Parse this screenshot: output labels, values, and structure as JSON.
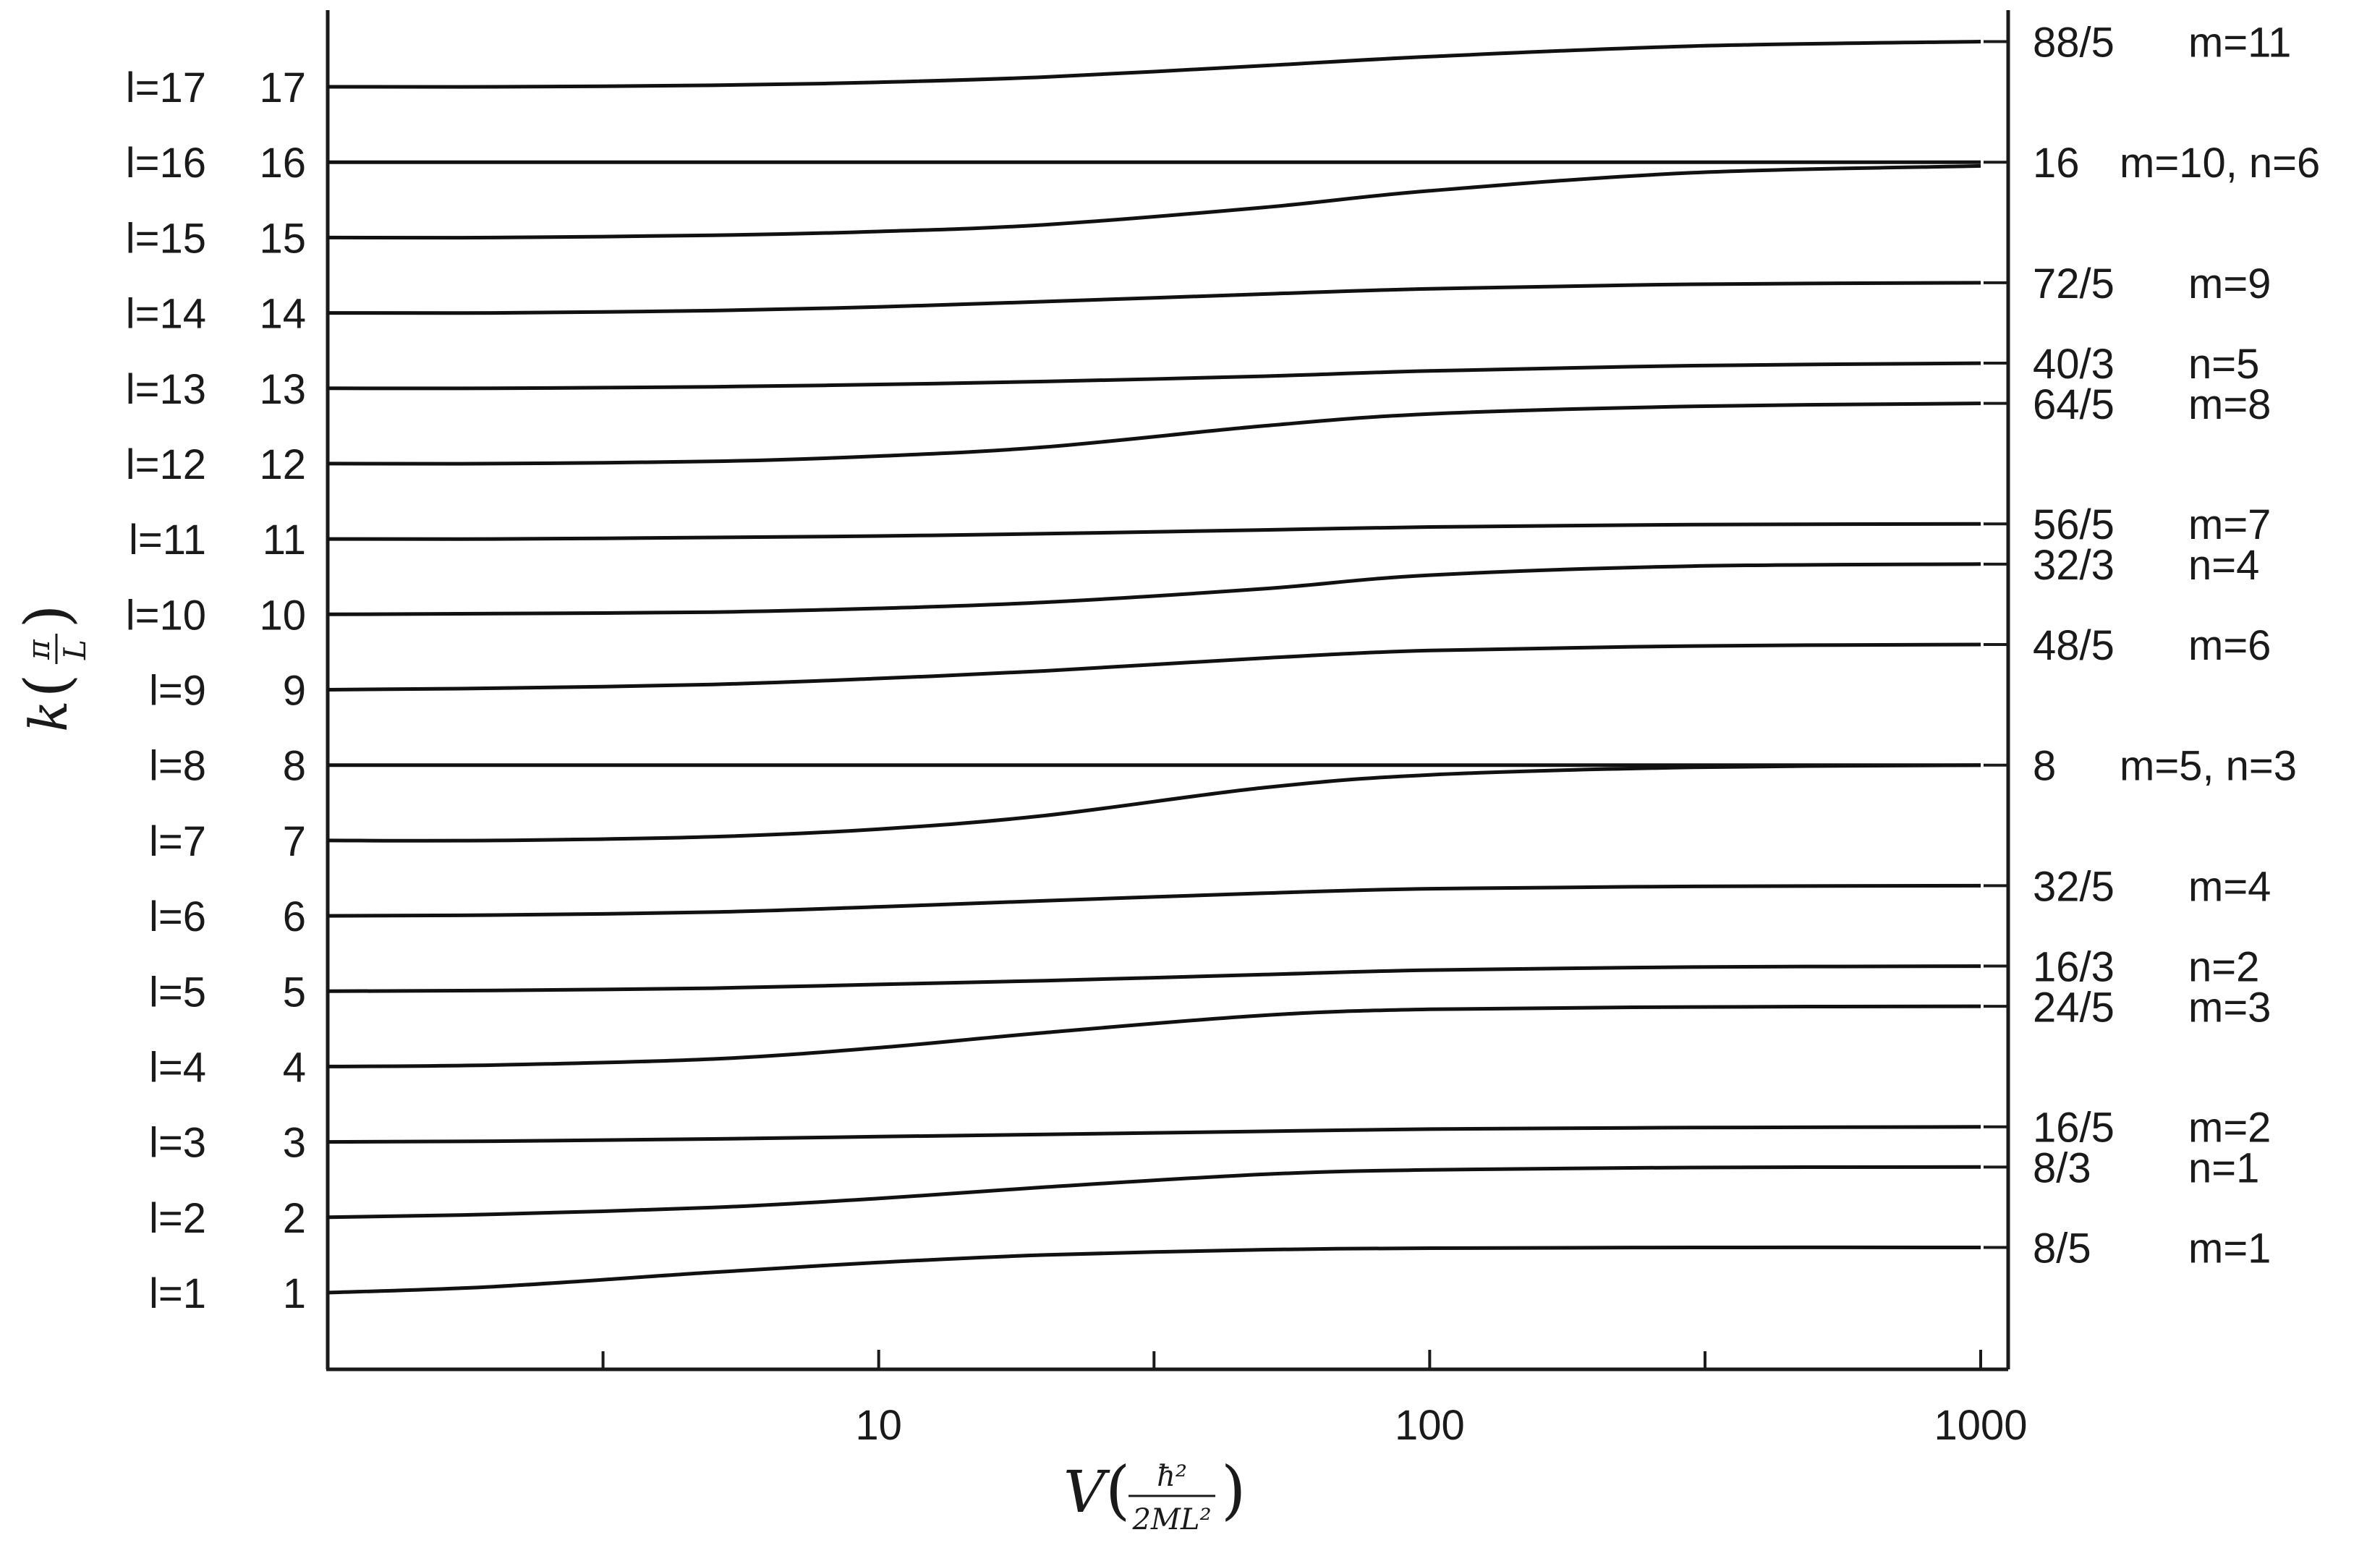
{
  "chart_data": {
    "type": "line",
    "xlabel": "V(ħ²/2ML²)",
    "ylabel": "k(π/L)",
    "xscale": "log",
    "xlim": [
      1,
      1000
    ],
    "ylim": [
      0,
      17.8
    ],
    "grid": false,
    "x_ticks": [
      {
        "value": 10,
        "label": "10"
      },
      {
        "value": 100,
        "label": "100"
      },
      {
        "value": 1000,
        "label": "1000"
      }
    ],
    "x_minor_ticks": [
      3.16,
      31.6,
      316
    ],
    "y_tick_labels": [
      "1",
      "2",
      "3",
      "4",
      "5",
      "6",
      "7",
      "8",
      "9",
      "10",
      "11",
      "12",
      "13",
      "14",
      "15",
      "16",
      "17"
    ],
    "left_labels": [
      "l=1",
      "l=2",
      "l=3",
      "l=4",
      "l=5",
      "l=6",
      "l=7",
      "l=8",
      "l=9",
      "l=10",
      "l=11",
      "l=12",
      "l=13",
      "l=14",
      "l=15",
      "l=16",
      "l=17"
    ],
    "right_labels": [
      {
        "value": 1.6,
        "fraction": "8/5",
        "mode": "m=1"
      },
      {
        "value": 2.667,
        "fraction": "8/3",
        "mode": "n=1"
      },
      {
        "value": 3.2,
        "fraction": "16/5",
        "mode": "m=2"
      },
      {
        "value": 4.8,
        "fraction": "24/5",
        "mode": "m=3"
      },
      {
        "value": 5.333,
        "fraction": "16/3",
        "mode": "n=2"
      },
      {
        "value": 6.4,
        "fraction": "32/5",
        "mode": "m=4"
      },
      {
        "value": 8.0,
        "fraction": "8",
        "mode": "m=5, n=3"
      },
      {
        "value": 9.6,
        "fraction": "48/5",
        "mode": "m=6"
      },
      {
        "value": 10.667,
        "fraction": "32/3",
        "mode": "n=4"
      },
      {
        "value": 11.2,
        "fraction": "56/5",
        "mode": "m=7"
      },
      {
        "value": 12.8,
        "fraction": "64/5",
        "mode": "m=8"
      },
      {
        "value": 13.333,
        "fraction": "40/3",
        "mode": "n=5"
      },
      {
        "value": 14.4,
        "fraction": "72/5",
        "mode": "m=9"
      },
      {
        "value": 16.0,
        "fraction": "16",
        "mode": "m=10, n=6"
      },
      {
        "value": 17.6,
        "fraction": "88/5",
        "mode": "m=11"
      }
    ],
    "series": [
      {
        "x": [
          1,
          2,
          5,
          10,
          20,
          50,
          100,
          300,
          1000
        ],
        "values": [
          1,
          1.08,
          1.27,
          1.4,
          1.5,
          1.57,
          1.59,
          1.6,
          1.6
        ]
      },
      {
        "x": [
          1,
          2,
          5,
          10,
          20,
          50,
          100,
          300,
          1000
        ],
        "values": [
          2,
          2.04,
          2.13,
          2.25,
          2.4,
          2.57,
          2.63,
          2.66,
          2.667
        ]
      },
      {
        "x": [
          1,
          2,
          5,
          10,
          20,
          50,
          100,
          300,
          1000
        ],
        "values": [
          3,
          3.01,
          3.04,
          3.07,
          3.1,
          3.14,
          3.17,
          3.19,
          3.2
        ]
      },
      {
        "x": [
          1,
          2,
          5,
          10,
          20,
          50,
          100,
          300,
          1000
        ],
        "values": [
          4,
          4.02,
          4.1,
          4.25,
          4.45,
          4.68,
          4.76,
          4.79,
          4.8
        ]
      },
      {
        "x": [
          1,
          2,
          5,
          10,
          20,
          50,
          100,
          300,
          1000
        ],
        "values": [
          5,
          5.01,
          5.04,
          5.09,
          5.14,
          5.22,
          5.28,
          5.32,
          5.333
        ]
      },
      {
        "x": [
          1,
          2,
          5,
          10,
          20,
          50,
          100,
          300,
          1000
        ],
        "values": [
          6,
          6.01,
          6.05,
          6.12,
          6.2,
          6.3,
          6.36,
          6.39,
          6.4
        ]
      },
      {
        "x": [
          1,
          2,
          5,
          10,
          20,
          50,
          100,
          300,
          1000
        ],
        "values": [
          7,
          7.0,
          7.05,
          7.15,
          7.33,
          7.7,
          7.87,
          7.97,
          8.0
        ]
      },
      {
        "x": [
          1,
          2,
          5,
          10,
          20,
          50,
          100,
          300,
          1000
        ],
        "values": [
          8,
          8,
          8,
          8,
          8,
          8,
          8,
          8,
          8
        ]
      },
      {
        "x": [
          1,
          2,
          5,
          10,
          20,
          50,
          100,
          300,
          1000
        ],
        "values": [
          9,
          9.02,
          9.07,
          9.15,
          9.25,
          9.42,
          9.52,
          9.58,
          9.6
        ]
      },
      {
        "x": [
          1,
          2,
          5,
          10,
          20,
          50,
          100,
          300,
          1000
        ],
        "values": [
          10,
          10.01,
          10.03,
          10.08,
          10.16,
          10.34,
          10.52,
          10.64,
          10.667
        ]
      },
      {
        "x": [
          1,
          2,
          5,
          10,
          20,
          50,
          100,
          300,
          1000
        ],
        "values": [
          11,
          11.0,
          11.02,
          11.04,
          11.07,
          11.12,
          11.16,
          11.19,
          11.2
        ]
      },
      {
        "x": [
          1,
          2,
          5,
          10,
          20,
          50,
          100,
          300,
          1000
        ],
        "values": [
          12,
          12.0,
          12.03,
          12.1,
          12.22,
          12.5,
          12.66,
          12.76,
          12.8
        ]
      },
      {
        "x": [
          1,
          2,
          5,
          10,
          20,
          50,
          100,
          300,
          1000
        ],
        "values": [
          13,
          13.0,
          13.02,
          13.05,
          13.09,
          13.16,
          13.23,
          13.3,
          13.333
        ]
      },
      {
        "x": [
          1,
          2,
          5,
          10,
          20,
          50,
          100,
          300,
          1000
        ],
        "values": [
          14,
          14.0,
          14.03,
          14.08,
          14.15,
          14.25,
          14.32,
          14.38,
          14.4
        ]
      },
      {
        "x": [
          1,
          2,
          5,
          10,
          20,
          50,
          100,
          300,
          1000
        ],
        "values": [
          15,
          15.0,
          15.03,
          15.08,
          15.17,
          15.4,
          15.62,
          15.86,
          15.95
        ]
      },
      {
        "x": [
          1,
          2,
          5,
          10,
          20,
          50,
          100,
          300,
          1000
        ],
        "values": [
          16,
          16,
          16,
          16,
          16,
          16,
          16,
          16,
          16
        ]
      },
      {
        "x": [
          1,
          2,
          5,
          10,
          20,
          50,
          100,
          300,
          1000
        ],
        "values": [
          17,
          17.0,
          17.02,
          17.06,
          17.13,
          17.28,
          17.4,
          17.54,
          17.6
        ]
      }
    ]
  }
}
